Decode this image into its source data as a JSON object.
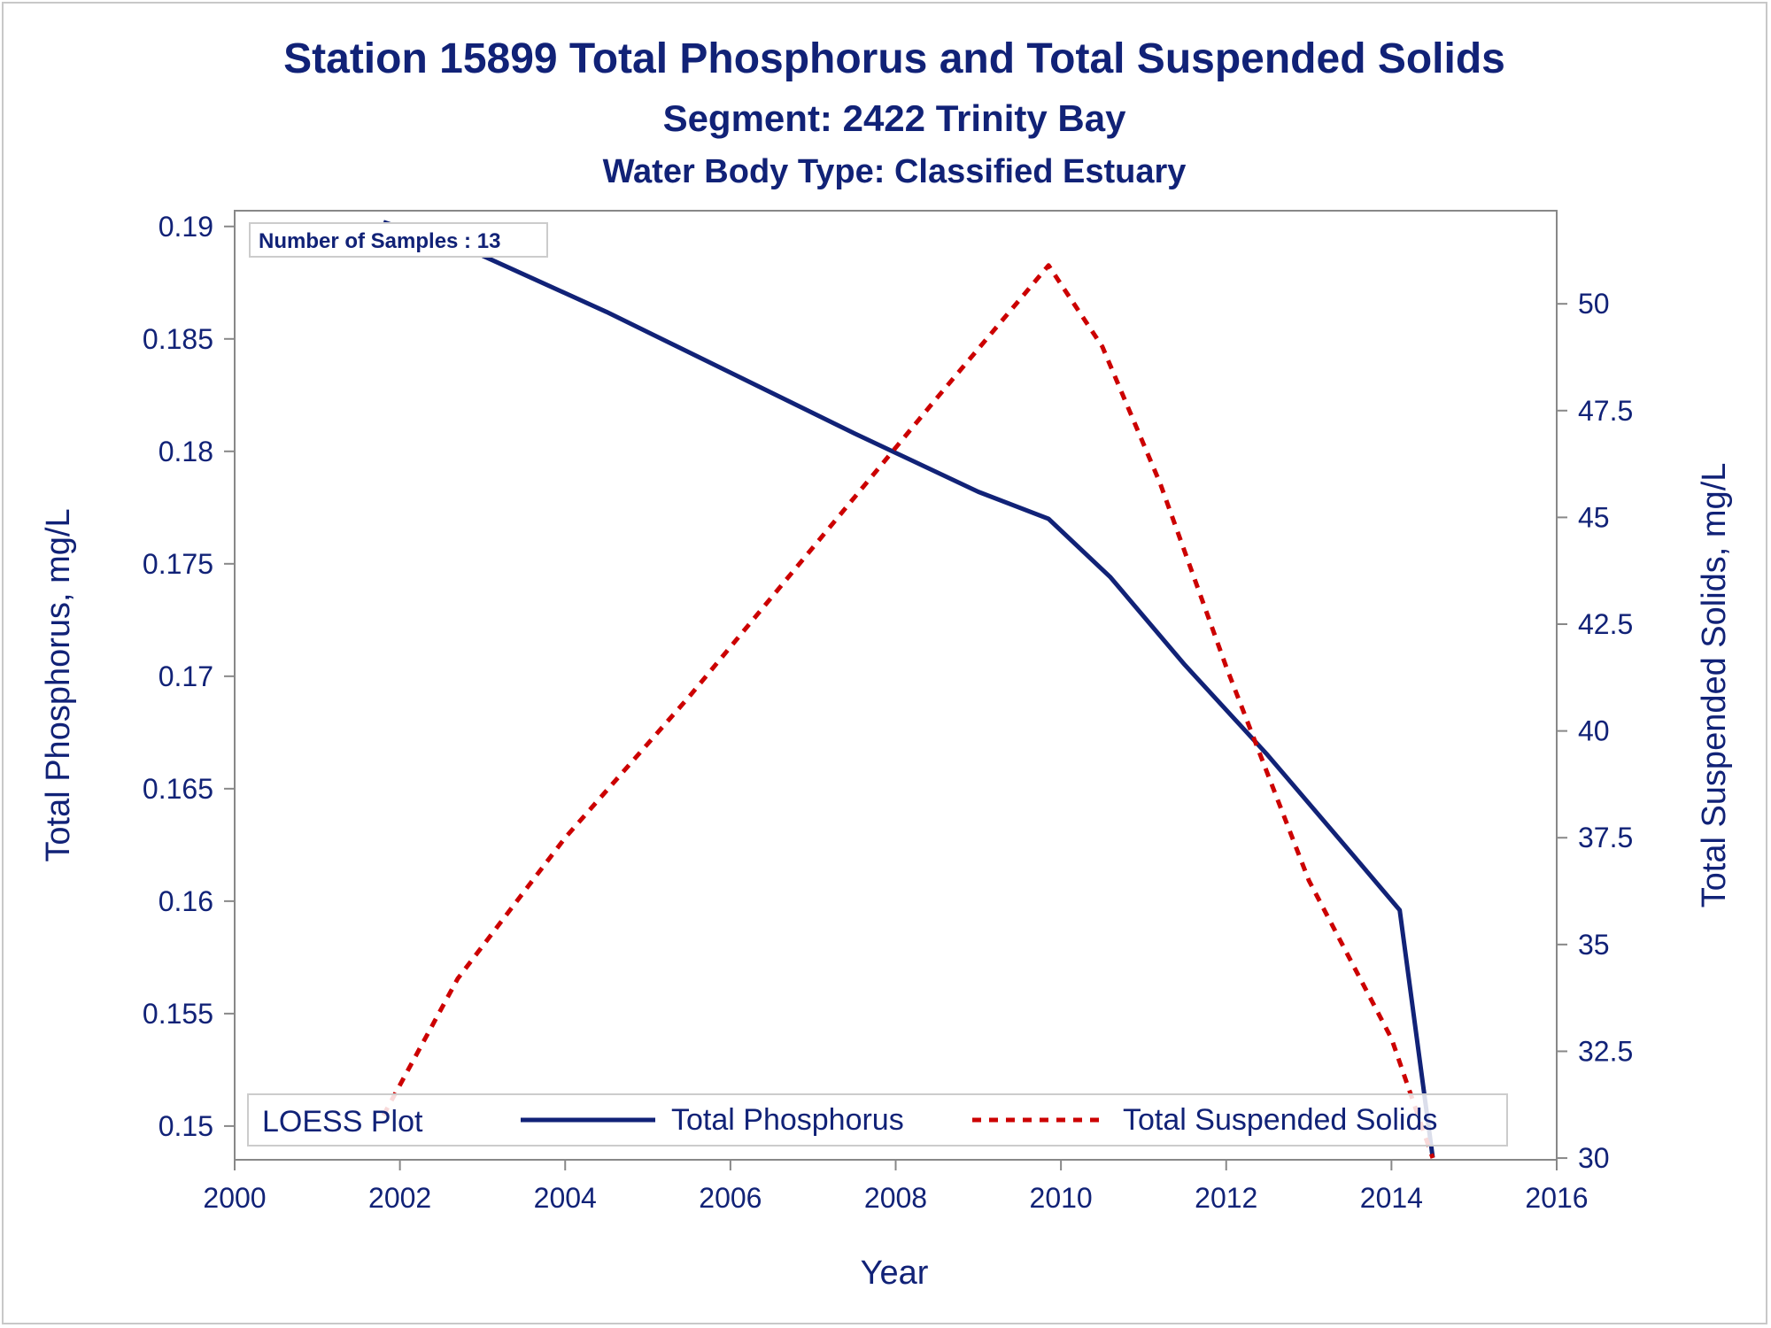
{
  "chart_data": {
    "type": "line",
    "title": "Station 15899  Total Phosphorus and Total Suspended Solids",
    "subtitle": "Segment: 2422  Trinity Bay",
    "subtitle2": "Water Body Type: Classified Estuary",
    "xlabel": "Year",
    "ylabel": "Total Phosphorus, mg/L",
    "y2label": "Total Suspended Solids, mg/L",
    "xlim": [
      2000,
      2016
    ],
    "ylim": [
      0.1485,
      0.1907
    ],
    "y2lim": [
      29.96,
      52.18
    ],
    "x_ticks": [
      "2000",
      "2002",
      "2004",
      "2006",
      "2008",
      "2010",
      "2012",
      "2014",
      "2016"
    ],
    "y_ticks": [
      "0.15",
      "0.155",
      "0.16",
      "0.165",
      "0.17",
      "0.175",
      "0.18",
      "0.185",
      "0.19"
    ],
    "y2_ticks": [
      "30",
      "32.5",
      "35",
      "37.5",
      "40",
      "42.5",
      "45",
      "47.5",
      "50"
    ],
    "annotation": "Number of Samples : 13",
    "legend": {
      "title": "LOESS Plot",
      "position": "bottom-inside"
    },
    "grid": false,
    "series": [
      {
        "name": "Total Phosphorus",
        "axis": "left",
        "style": "solid",
        "color": "#112277",
        "x": [
          2001.8,
          2003.0,
          2004.5,
          2006.0,
          2007.5,
          2009.0,
          2009.85,
          2010.6,
          2011.5,
          2012.5,
          2013.5,
          2014.1,
          2014.5
        ],
        "y": [
          0.1902,
          0.1887,
          0.1862,
          0.1835,
          0.1808,
          0.1782,
          0.177,
          0.1744,
          0.1705,
          0.1665,
          0.1622,
          0.1596,
          0.1486
        ]
      },
      {
        "name": "Total Suspended Solids",
        "axis": "right",
        "style": "dashed",
        "color": "#cc0000",
        "x": [
          2001.8,
          2002.7,
          2004.0,
          2005.5,
          2007.0,
          2008.5,
          2009.85,
          2010.5,
          2011.2,
          2012.0,
          2013.0,
          2014.0,
          2014.5
        ],
        "y": [
          31.0,
          34.2,
          37.5,
          40.8,
          44.3,
          47.8,
          50.9,
          49.0,
          45.8,
          41.5,
          36.5,
          32.8,
          30.0
        ]
      }
    ]
  }
}
